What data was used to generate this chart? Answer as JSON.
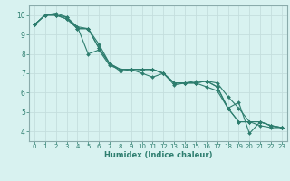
{
  "xlabel": "Humidex (Indice chaleur)",
  "ylabel": "",
  "bg_color": "#d8f2f0",
  "grid_color": "#c4dedd",
  "line_color": "#2d7d6e",
  "spine_color": "#8aabab",
  "xlim": [
    -0.5,
    23.5
  ],
  "ylim": [
    3.5,
    10.5
  ],
  "xticks": [
    0,
    1,
    2,
    3,
    4,
    5,
    6,
    7,
    8,
    9,
    10,
    11,
    12,
    13,
    14,
    15,
    16,
    17,
    18,
    19,
    20,
    21,
    22,
    23
  ],
  "yticks": [
    4,
    5,
    6,
    7,
    8,
    9,
    10
  ],
  "lines": [
    [
      9.5,
      10.0,
      10.0,
      9.9,
      9.3,
      9.3,
      8.5,
      7.5,
      7.2,
      7.2,
      7.2,
      7.2,
      7.0,
      6.4,
      6.5,
      6.6,
      6.6,
      6.3,
      5.2,
      4.5,
      4.5,
      4.3,
      4.2,
      4.2
    ],
    [
      9.5,
      10.0,
      10.1,
      9.9,
      9.4,
      8.0,
      8.2,
      7.4,
      7.2,
      7.2,
      7.0,
      6.8,
      7.0,
      6.5,
      6.5,
      6.5,
      6.6,
      6.5,
      5.8,
      5.2,
      4.5,
      4.5,
      4.3,
      4.2
    ],
    [
      9.5,
      10.0,
      10.0,
      9.8,
      9.3,
      9.3,
      8.3,
      7.5,
      7.2,
      7.2,
      7.2,
      7.2,
      7.0,
      6.5,
      6.5,
      6.5,
      6.6,
      6.3,
      5.2,
      5.5,
      3.9,
      4.5,
      4.3,
      4.2
    ],
    [
      9.5,
      10.0,
      10.0,
      9.8,
      9.4,
      9.3,
      8.3,
      7.5,
      7.1,
      7.2,
      7.2,
      7.2,
      7.0,
      6.5,
      6.5,
      6.5,
      6.3,
      6.1,
      5.2,
      4.5,
      4.5,
      4.5,
      4.3,
      4.2
    ]
  ],
  "tick_fontsize": 5.0,
  "xlabel_fontsize": 6.0
}
